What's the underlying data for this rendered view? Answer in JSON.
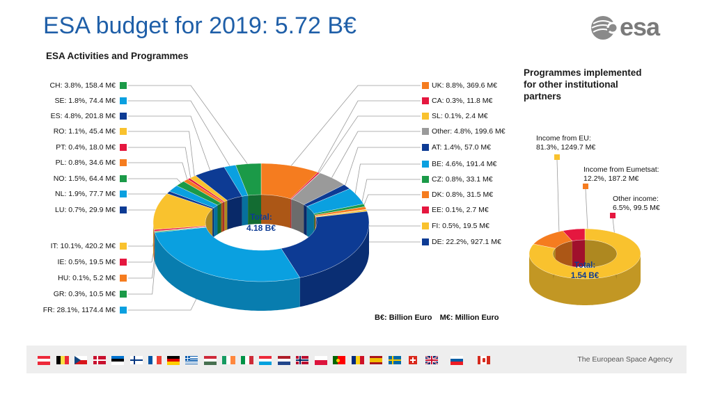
{
  "title": "ESA budget for 2019: 5.72 B€",
  "logo_text": "esa",
  "footer_text": "The European Space Agency",
  "units": {
    "billion": "B€: Billion Euro",
    "million": "M€: Million Euro"
  },
  "colors": {
    "orange": "#f57c1f",
    "red": "#e5173f",
    "yellow": "#f9c22e",
    "grey": "#9a9a9a",
    "darkblue": "#0d3b94",
    "lightblue": "#0aa0e0",
    "green": "#1b9a48",
    "title_blue": "#1f5fa8"
  },
  "chart_data": [
    {
      "type": "pie",
      "variant": "donut",
      "title": "ESA Activities and Programmes",
      "center_label": "Total:",
      "center_value": "4.18 B€",
      "slices": [
        {
          "label": "UK: 8.8%, 369.6 M€",
          "name": "UK",
          "percent": 8.8,
          "value": 369.6,
          "color": "orange"
        },
        {
          "label": "CA: 0.3%, 11.8 M€",
          "name": "CA",
          "percent": 0.3,
          "value": 11.8,
          "color": "red"
        },
        {
          "label": "SL: 0.1%, 2.4 M€",
          "name": "SL",
          "percent": 0.1,
          "value": 2.4,
          "color": "yellow"
        },
        {
          "label": "Other: 4.8%, 199.6 M€",
          "name": "Other",
          "percent": 4.8,
          "value": 199.6,
          "color": "grey"
        },
        {
          "label": "AT: 1.4%, 57.0 M€",
          "name": "AT",
          "percent": 1.4,
          "value": 57.0,
          "color": "darkblue"
        },
        {
          "label": "BE: 4.6%, 191.4 M€",
          "name": "BE",
          "percent": 4.6,
          "value": 191.4,
          "color": "lightblue"
        },
        {
          "label": "CZ: 0.8%, 33.1 M€",
          "name": "CZ",
          "percent": 0.8,
          "value": 33.1,
          "color": "green"
        },
        {
          "label": "DK: 0.8%, 31.5 M€",
          "name": "DK",
          "percent": 0.8,
          "value": 31.5,
          "color": "orange"
        },
        {
          "label": "EE: 0.1%, 2.7 M€",
          "name": "EE",
          "percent": 0.1,
          "value": 2.7,
          "color": "red"
        },
        {
          "label": "FI: 0.5%, 19.5 M€",
          "name": "FI",
          "percent": 0.5,
          "value": 19.5,
          "color": "yellow"
        },
        {
          "label": "DE: 22.2%, 927.1 M€",
          "name": "DE",
          "percent": 22.2,
          "value": 927.1,
          "color": "darkblue"
        },
        {
          "label": "FR: 28.1%, 1174.4 M€",
          "name": "FR",
          "percent": 28.1,
          "value": 1174.4,
          "color": "lightblue"
        },
        {
          "label": "GR: 0.3%, 10.5 M€",
          "name": "GR",
          "percent": 0.3,
          "value": 10.5,
          "color": "green"
        },
        {
          "label": "HU: 0.1%, 5.2 M€",
          "name": "HU",
          "percent": 0.1,
          "value": 5.2,
          "color": "orange"
        },
        {
          "label": "IE: 0.5%, 19.5 M€",
          "name": "IE",
          "percent": 0.5,
          "value": 19.5,
          "color": "red"
        },
        {
          "label": "IT: 10.1%, 420.2 M€",
          "name": "IT",
          "percent": 10.1,
          "value": 420.2,
          "color": "yellow"
        },
        {
          "label": "LU: 0.7%, 29.9 M€",
          "name": "LU",
          "percent": 0.7,
          "value": 29.9,
          "color": "darkblue"
        },
        {
          "label": "NL: 1.9%, 77.7 M€",
          "name": "NL",
          "percent": 1.9,
          "value": 77.7,
          "color": "lightblue"
        },
        {
          "label": "NO: 1.5%, 64.4 M€",
          "name": "NO",
          "percent": 1.5,
          "value": 64.4,
          "color": "green"
        },
        {
          "label": "PL: 0.8%, 34.6 M€",
          "name": "PL",
          "percent": 0.8,
          "value": 34.6,
          "color": "orange"
        },
        {
          "label": "PT: 0.4%, 18.0 M€",
          "name": "PT",
          "percent": 0.4,
          "value": 18.0,
          "color": "red"
        },
        {
          "label": "RO: 1.1%, 45.4 M€",
          "name": "RO",
          "percent": 1.1,
          "value": 45.4,
          "color": "yellow"
        },
        {
          "label": "ES: 4.8%, 201.8 M€",
          "name": "ES",
          "percent": 4.8,
          "value": 201.8,
          "color": "darkblue"
        },
        {
          "label": "SE: 1.8%, 74.4 M€",
          "name": "SE",
          "percent": 1.8,
          "value": 74.4,
          "color": "lightblue"
        },
        {
          "label": "CH: 3.8%, 158.4 M€",
          "name": "CH",
          "percent": 3.8,
          "value": 158.4,
          "color": "green"
        }
      ]
    },
    {
      "type": "pie",
      "variant": "donut",
      "title": "Programmes implemented for other institutional partners",
      "title_lines": [
        "Programmes implemented",
        "for other institutional",
        "partners"
      ],
      "center_label": "Total:",
      "center_value": "1.54 B€",
      "slices": [
        {
          "name": "Income from EU",
          "label_lines": [
            "Income from EU:",
            "81.3%, 1249.7 M€"
          ],
          "percent": 81.3,
          "value": 1249.7,
          "color": "yellow"
        },
        {
          "name": "Income from Eumetsat",
          "label_lines": [
            "Income from Eumetsat:",
            "12.2%, 187.2 M€"
          ],
          "percent": 12.2,
          "value": 187.2,
          "color": "orange"
        },
        {
          "name": "Other income",
          "label_lines": [
            "Other income:",
            "6.5%, 99.5 M€"
          ],
          "percent": 6.5,
          "value": 99.5,
          "color": "red"
        }
      ]
    }
  ],
  "flags": [
    "AT",
    "BE",
    "CZ",
    "DK",
    "EE",
    "FI",
    "FR",
    "DE",
    "GR",
    "HU",
    "IE",
    "IT",
    "LU",
    "NL",
    "NO",
    "PL",
    "PT",
    "RO",
    "ES",
    "SE",
    "CH",
    "UK",
    "SI",
    "CA"
  ]
}
